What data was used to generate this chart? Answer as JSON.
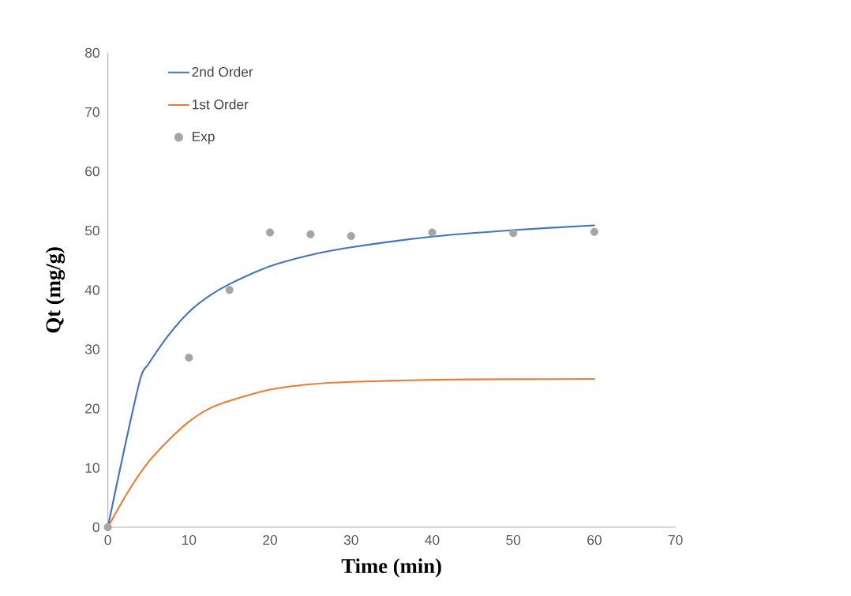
{
  "chart_data": {
    "type": "line",
    "xlabel": "Time (min)",
    "ylabel": "Qt (mg/g)",
    "xlim": [
      0,
      70
    ],
    "ylim": [
      0,
      80
    ],
    "xticks": [
      0,
      10,
      20,
      30,
      40,
      50,
      60,
      70
    ],
    "yticks": [
      0,
      10,
      20,
      30,
      40,
      50,
      60,
      70,
      80
    ],
    "grid": false,
    "legend": "top left",
    "series": [
      {
        "name": "2nd Order",
        "color": "#4472c4",
        "marker": "none",
        "x": [
          0,
          2,
          4,
          5,
          7.5,
          10,
          12.5,
          15,
          20,
          25,
          30,
          40,
          50,
          60
        ],
        "values": [
          0,
          13,
          25,
          27.5,
          32.4,
          36.3,
          39,
          41,
          44,
          45.9,
          47.2,
          49,
          50.1,
          50.9
        ]
      },
      {
        "name": "1st Order",
        "color": "#ed7d31",
        "marker": "none",
        "x": [
          0,
          2.5,
          5,
          7.5,
          10,
          12.5,
          15,
          20,
          25,
          30,
          40,
          50,
          60
        ],
        "values": [
          0,
          6,
          11,
          14.7,
          17.8,
          20,
          21.3,
          23.2,
          24.1,
          24.5,
          24.85,
          24.95,
          25
        ]
      },
      {
        "name": "Exp",
        "type": "scatter",
        "color": "#a5a5a5",
        "marker": "circle",
        "x": [
          0,
          10,
          15,
          20,
          25,
          30,
          40,
          50,
          60
        ],
        "values": [
          0,
          28.6,
          40,
          49.7,
          49.4,
          49.1,
          49.7,
          49.6,
          49.8
        ]
      }
    ]
  }
}
